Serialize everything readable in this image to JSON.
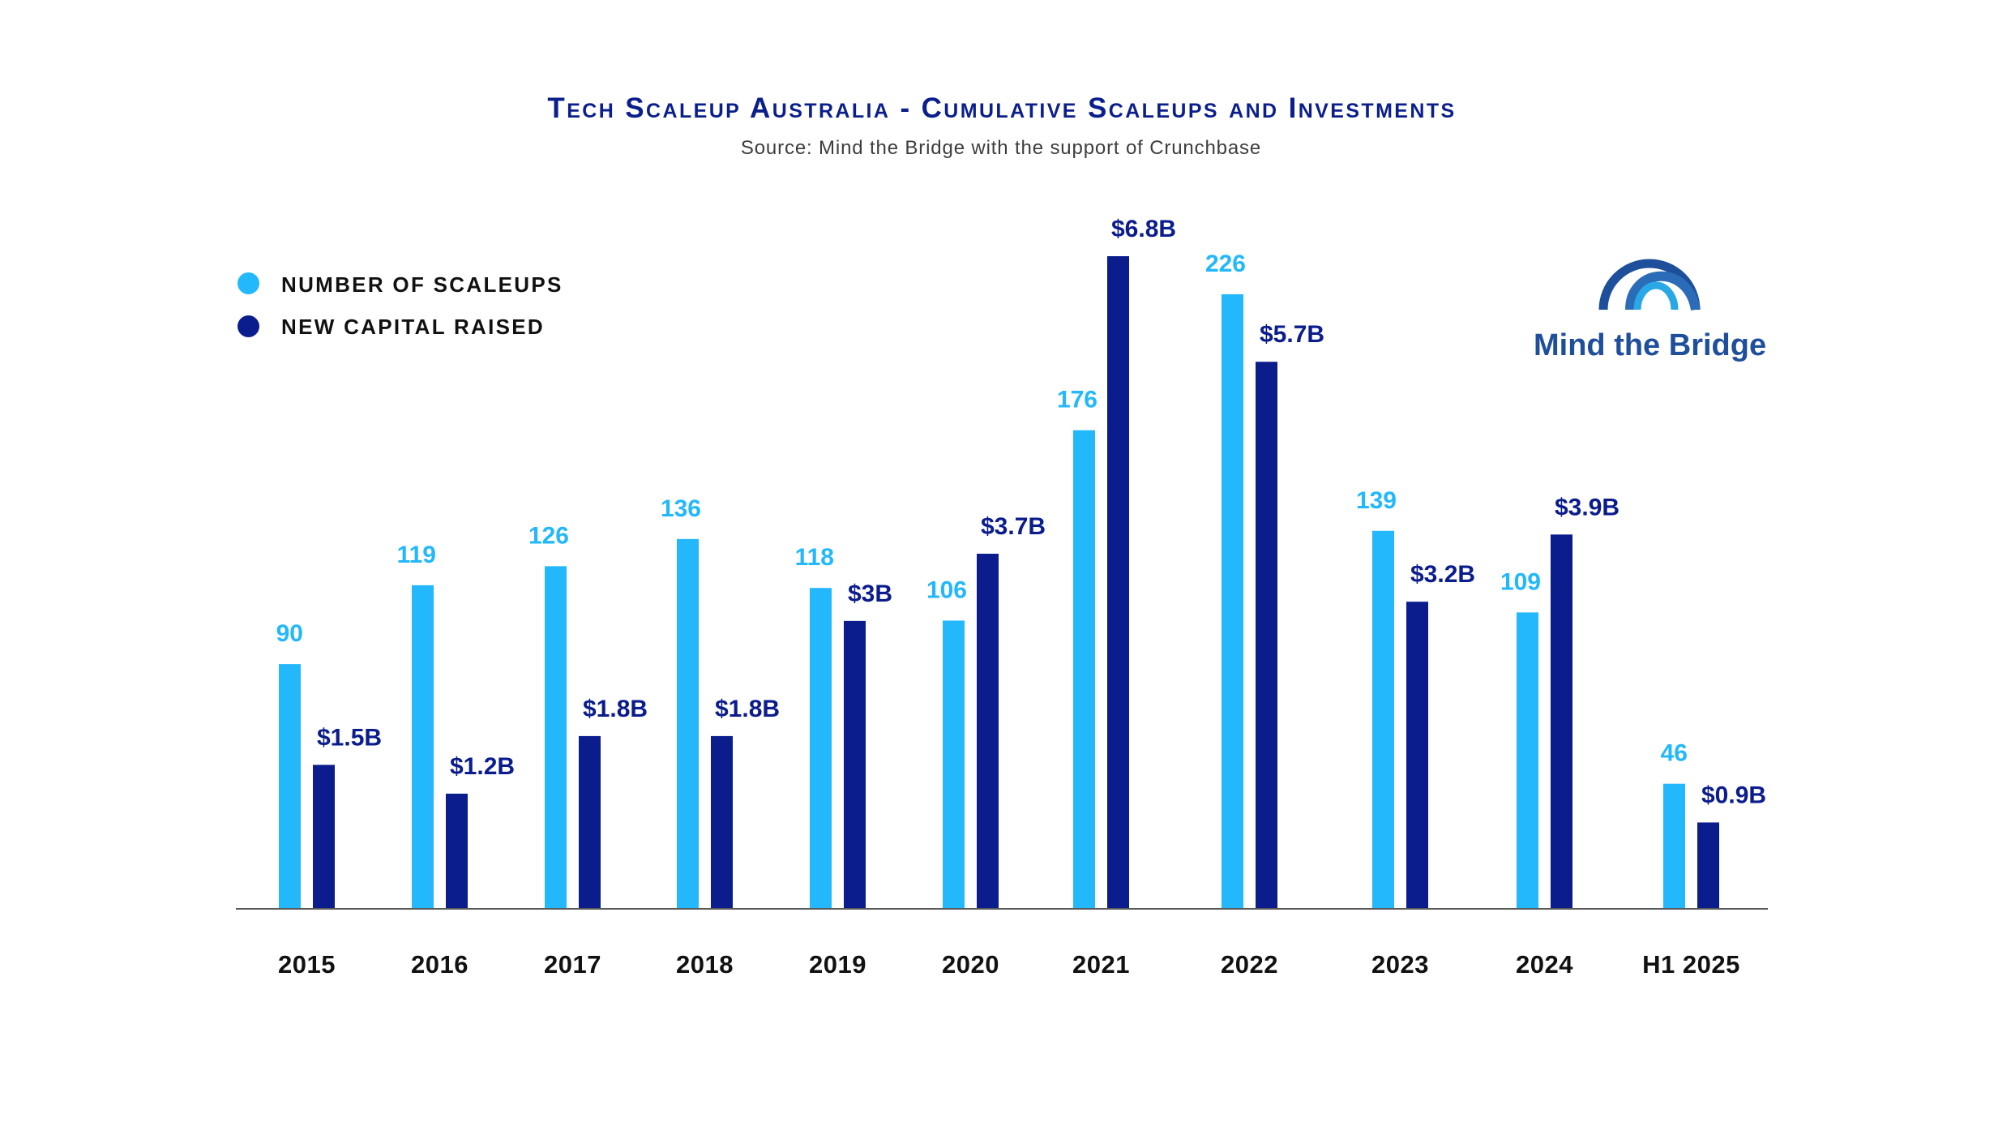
{
  "header": {
    "title": "Tech Scaleup Australia - Cumulative Scaleups and Investments",
    "subtitle": "Source: Mind the Bridge with the support of Crunchbase"
  },
  "legend": [
    {
      "label": "NUMBER OF SCALEUPS",
      "color": "#22b8fb",
      "icon": "circle-icon"
    },
    {
      "label": "NEW CAPITAL RAISED",
      "color": "#0b1c8c",
      "icon": "circle-icon"
    }
  ],
  "logo": {
    "text": "Mind the Bridge",
    "icon": "bridge-arcs-icon",
    "colors": [
      "#1d4f9b",
      "#2b6cb8",
      "#2aa8e6"
    ]
  },
  "chart_data": {
    "type": "bar",
    "title": "Tech Scaleup Australia - Cumulative Scaleups and Investments",
    "subtitle": "Source: Mind the Bridge with the support of Crunchbase",
    "xlabel": "",
    "ylabel": "",
    "grid": false,
    "legend_position": "top-left",
    "categories": [
      "2015",
      "2016",
      "2017",
      "2018",
      "2019",
      "2020",
      "2021",
      "2022",
      "2023",
      "2024",
      "H1 2025"
    ],
    "y_range_scaleups": [
      0,
      240
    ],
    "y_range_capital": [
      0,
      6.8
    ],
    "series": [
      {
        "name": "NUMBER OF SCALEUPS",
        "color": "#22b8fb",
        "unit": "scaleups",
        "values": [
          90,
          119,
          126,
          136,
          118,
          106,
          176,
          226,
          139,
          109,
          46
        ],
        "labels": [
          "90",
          "119",
          "126",
          "136",
          "118",
          "106",
          "176",
          "226",
          "139",
          "109",
          "46"
        ]
      },
      {
        "name": "NEW CAPITAL RAISED",
        "color": "#0b1c8c",
        "unit": "billion USD",
        "values": [
          1.5,
          1.2,
          1.8,
          1.8,
          3,
          3.7,
          6.8,
          5.7,
          3.2,
          3.9,
          0.9
        ],
        "labels": [
          "$1.5B",
          "$1.2B",
          "$1.8B",
          "$1.8B",
          "$3B",
          "$3.7B",
          "$6.8B",
          "$5.7B",
          "$3.2B",
          "$3.9B",
          "$0.9B"
        ]
      }
    ]
  }
}
